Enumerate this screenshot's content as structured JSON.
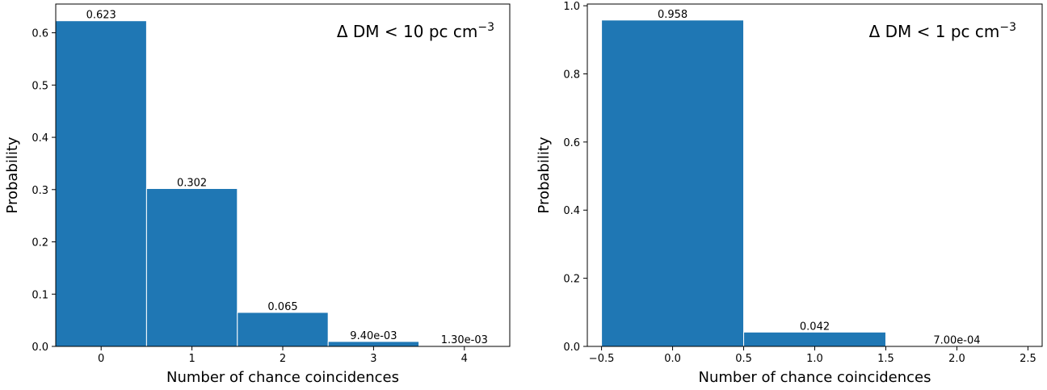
{
  "chart_data": [
    {
      "type": "bar",
      "xlabel": "Number of chance coincidences",
      "ylabel": "Probability",
      "annotation": {
        "prefix": "Δ DM < 10 pc cm",
        "sup": "−3"
      },
      "xlim": [
        -0.5,
        4.5
      ],
      "ylim": [
        0,
        0.655
      ],
      "bar_width": 1.0,
      "bar_color": "#1f77b4",
      "xticks": [
        0,
        1,
        2,
        3,
        4
      ],
      "xtick_labels": [
        "0",
        "1",
        "2",
        "3",
        "4"
      ],
      "yticks": [
        0.0,
        0.1,
        0.2,
        0.3,
        0.4,
        0.5,
        0.6
      ],
      "ytick_labels": [
        "0.0",
        "0.1",
        "0.2",
        "0.3",
        "0.4",
        "0.5",
        "0.6"
      ],
      "categories": [
        0,
        1,
        2,
        3,
        4
      ],
      "values": [
        0.623,
        0.302,
        0.065,
        0.0094,
        0.0013
      ],
      "labels": [
        "0.623",
        "0.302",
        "0.065",
        "9.40e-03",
        "1.30e-03"
      ],
      "grid": false
    },
    {
      "type": "bar",
      "xlabel": "Number of chance coincidences",
      "ylabel": "Probability",
      "annotation": {
        "prefix": "Δ DM < 1 pc cm",
        "sup": "−3"
      },
      "xlim": [
        -0.6,
        2.6
      ],
      "ylim": [
        0,
        1.005
      ],
      "bar_width": 1.0,
      "bar_color": "#1f77b4",
      "xticks": [
        -0.5,
        0.0,
        0.5,
        1.0,
        1.5,
        2.0,
        2.5
      ],
      "xtick_labels": [
        "−0.5",
        "0.0",
        "0.5",
        "1.0",
        "1.5",
        "2.0",
        "2.5"
      ],
      "yticks": [
        0.0,
        0.2,
        0.4,
        0.6,
        0.8,
        1.0
      ],
      "ytick_labels": [
        "0.0",
        "0.2",
        "0.4",
        "0.6",
        "0.8",
        "1.0"
      ],
      "categories": [
        0,
        1,
        2
      ],
      "values": [
        0.958,
        0.042,
        0.0007
      ],
      "labels": [
        "0.958",
        "0.042",
        "7.00e-04"
      ],
      "grid": false
    }
  ]
}
